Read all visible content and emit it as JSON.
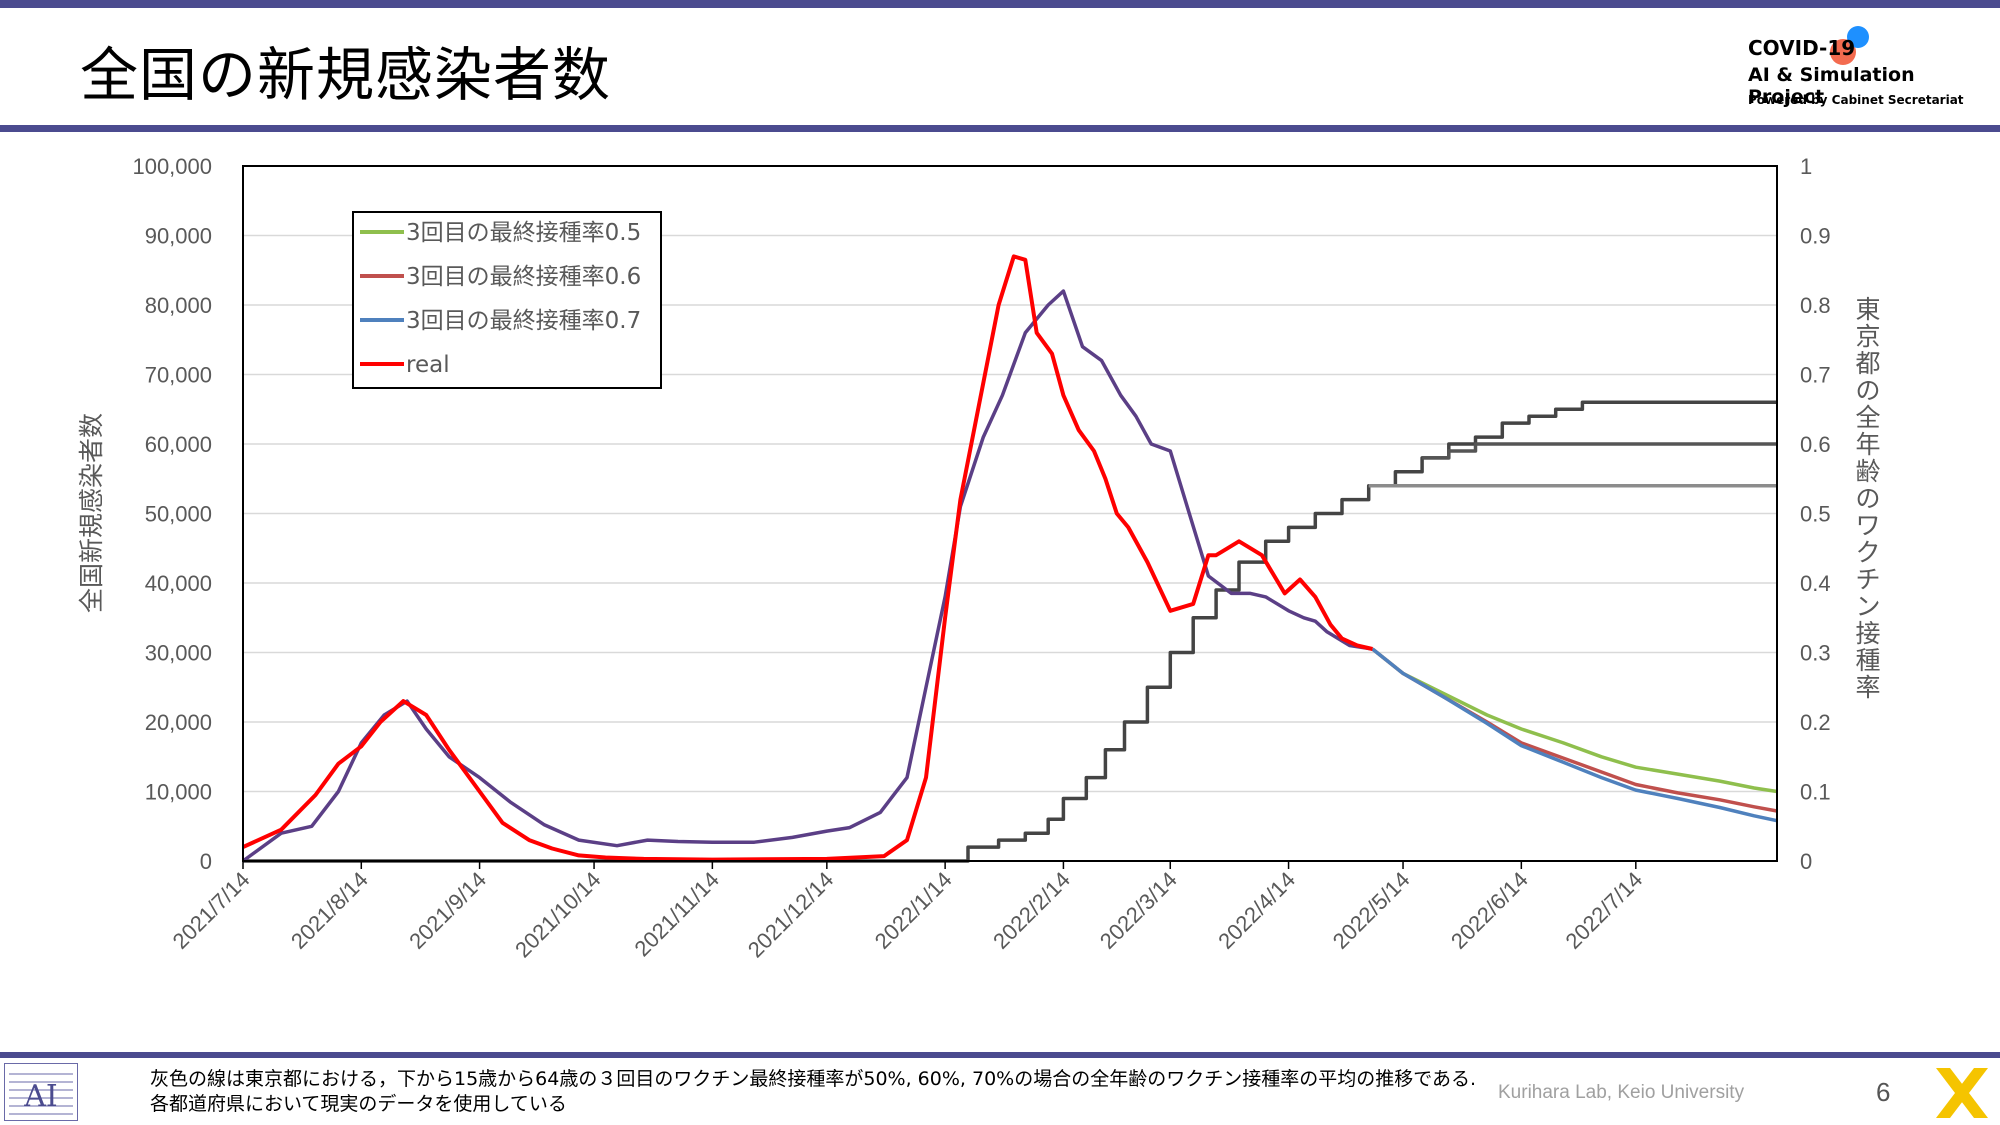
{
  "slide": {
    "title": "全国の新規感染者数",
    "logo": {
      "line1": "COVID-19",
      "line2": "AI & Simulation Project",
      "line3": "Powered by Cabinet Secretariat"
    },
    "footnote_line1": "灰色の線は東京都における，下から15歳から64歳の３回目のワクチン最終接種率が50%, 60%, 70%の場合の全年齢のワクチン接種率の平均の推移である.",
    "footnote_line2": "各都道府県において現実のデータを使用している",
    "credit": "Kurihara Lab, Keio University",
    "page_number": "6",
    "colors": {
      "header_bar": "#4b4b8f",
      "accent_yellow": "#f5c400"
    }
  },
  "chart_data": {
    "type": "line",
    "xlabel": "",
    "ylabel": "全国新規感染者数",
    "y2label": "東京都の全年齢のワクチン接種率",
    "ylim": [
      0,
      100000
    ],
    "y2lim": [
      0,
      1
    ],
    "yticks": [
      "0",
      "10,000",
      "20,000",
      "30,000",
      "40,000",
      "50,000",
      "60,000",
      "70,000",
      "80,000",
      "90,000",
      "100,000"
    ],
    "y2ticks": [
      "0",
      "0.1",
      "0.2",
      "0.3",
      "0.4",
      "0.5",
      "0.6",
      "0.7",
      "0.8",
      "0.9",
      "1"
    ],
    "xlim": [
      "2021-07-14",
      "2022-08-20"
    ],
    "xticks": [
      "2021/7/14",
      "2021/8/14",
      "2021/9/14",
      "2021/10/14",
      "2021/11/14",
      "2021/12/14",
      "2022/1/14",
      "2022/2/14",
      "2022/3/14",
      "2022/4/14",
      "2022/5/14",
      "2022/6/14",
      "2022/7/14"
    ],
    "grid": "horizontal",
    "legend_position": "top-left",
    "legend": [
      {
        "label": "3回目の最終接種率0.5",
        "color": "#8fbf4d"
      },
      {
        "label": "3回目の最終接種率0.6",
        "color": "#c0504d"
      },
      {
        "label": "3回目の最終接種率0.7",
        "color": "#4f81bd"
      },
      {
        "label": "real",
        "color": "#ff0000"
      }
    ],
    "series": [
      {
        "name": "fitted (overlap of 0.5 / 0.6 / 0.7)",
        "axis": "left",
        "color": "#5b3f86",
        "x": [
          "2021-07-14",
          "2021-07-24",
          "2021-08-01",
          "2021-08-08",
          "2021-08-14",
          "2021-08-20",
          "2021-08-26",
          "2021-08-31",
          "2021-09-06",
          "2021-09-14",
          "2021-09-22",
          "2021-10-01",
          "2021-10-10",
          "2021-10-20",
          "2021-10-28",
          "2021-11-05",
          "2021-11-14",
          "2021-11-25",
          "2021-12-05",
          "2021-12-14",
          "2021-12-20",
          "2021-12-28",
          "2022-01-04",
          "2022-01-09",
          "2022-01-14",
          "2022-01-18",
          "2022-01-24",
          "2022-01-29",
          "2022-02-04",
          "2022-02-10",
          "2022-02-14",
          "2022-02-19",
          "2022-02-24",
          "2022-03-01",
          "2022-03-05",
          "2022-03-09",
          "2022-03-14",
          "2022-03-19",
          "2022-03-24",
          "2022-03-30",
          "2022-04-04",
          "2022-04-08",
          "2022-04-14",
          "2022-04-18",
          "2022-04-21",
          "2022-04-24",
          "2022-04-30",
          "2022-05-06"
        ],
        "y": [
          0,
          4000,
          5000,
          10000,
          17000,
          21000,
          23000,
          19000,
          15000,
          12000,
          8500,
          5200,
          3000,
          2200,
          3000,
          2800,
          2700,
          2700,
          3400,
          4300,
          4800,
          7000,
          12000,
          25000,
          38000,
          51000,
          61000,
          67000,
          76000,
          80000,
          82000,
          74000,
          72000,
          67000,
          64000,
          60000,
          59000,
          50000,
          41000,
          38500,
          38500,
          38000,
          36000,
          35000,
          34500,
          33000,
          31000,
          30500
        ]
      },
      {
        "name": "3回目の最終接種率0.5",
        "axis": "left",
        "color": "#8fbf4d",
        "x": [
          "2022-05-06",
          "2022-05-14",
          "2022-05-25",
          "2022-06-05",
          "2022-06-14",
          "2022-06-25",
          "2022-07-05",
          "2022-07-14",
          "2022-07-25",
          "2022-08-05",
          "2022-08-14",
          "2022-08-20"
        ],
        "y": [
          30500,
          27000,
          24000,
          21000,
          19000,
          17000,
          15000,
          13500,
          12500,
          11500,
          10500,
          10000
        ]
      },
      {
        "name": "3回目の最終接種率0.6",
        "axis": "left",
        "color": "#c0504d",
        "x": [
          "2022-05-06",
          "2022-05-14",
          "2022-05-25",
          "2022-06-05",
          "2022-06-14",
          "2022-06-25",
          "2022-07-05",
          "2022-07-14",
          "2022-07-25",
          "2022-08-05",
          "2022-08-14",
          "2022-08-20"
        ],
        "y": [
          30500,
          27000,
          23500,
          20000,
          17000,
          14800,
          12800,
          11000,
          9800,
          8800,
          7800,
          7200
        ]
      },
      {
        "name": "3回目の最終接種率0.7",
        "axis": "left",
        "color": "#4f81bd",
        "x": [
          "2022-05-06",
          "2022-05-14",
          "2022-05-25",
          "2022-06-05",
          "2022-06-14",
          "2022-06-25",
          "2022-07-05",
          "2022-07-14",
          "2022-07-25",
          "2022-08-05",
          "2022-08-14",
          "2022-08-20"
        ],
        "y": [
          30500,
          27000,
          23500,
          19800,
          16600,
          14200,
          12000,
          10200,
          9000,
          7700,
          6500,
          5800
        ]
      },
      {
        "name": "real",
        "axis": "left",
        "color": "#ff0000",
        "x": [
          "2021-07-14",
          "2021-07-24",
          "2021-08-02",
          "2021-08-08",
          "2021-08-14",
          "2021-08-19",
          "2021-08-25",
          "2021-08-31",
          "2021-09-06",
          "2021-09-14",
          "2021-09-20",
          "2021-09-27",
          "2021-10-03",
          "2021-10-10",
          "2021-10-17",
          "2021-10-27",
          "2021-11-14",
          "2021-12-14",
          "2021-12-29",
          "2022-01-04",
          "2022-01-09",
          "2022-01-14",
          "2022-01-18",
          "2022-01-23",
          "2022-01-28",
          "2022-02-01",
          "2022-02-04",
          "2022-02-07",
          "2022-02-11",
          "2022-02-14",
          "2022-02-18",
          "2022-02-22",
          "2022-02-25",
          "2022-02-28",
          "2022-03-03",
          "2022-03-08",
          "2022-03-14",
          "2022-03-20",
          "2022-03-24",
          "2022-03-26",
          "2022-03-29",
          "2022-04-01",
          "2022-04-07",
          "2022-04-13",
          "2022-04-17",
          "2022-04-21",
          "2022-04-25",
          "2022-04-28",
          "2022-05-02",
          "2022-05-06"
        ],
        "y": [
          2000,
          4500,
          9500,
          14000,
          16500,
          20000,
          23000,
          21000,
          16000,
          10000,
          5500,
          3000,
          1800,
          800,
          500,
          300,
          200,
          300,
          700,
          3000,
          12000,
          35000,
          52000,
          66000,
          80000,
          87000,
          86500,
          76000,
          73000,
          67000,
          62000,
          59000,
          55000,
          50000,
          48000,
          43000,
          36000,
          37000,
          44000,
          44000,
          45000,
          46000,
          44000,
          38500,
          40500,
          38000,
          34000,
          32000,
          31000,
          30500
        ]
      },
      {
        "name": "接種率 (70%)",
        "axis": "right",
        "color": "#444444",
        "x": [
          "2021-07-14",
          "2022-01-14",
          "2022-01-20",
          "2022-01-28",
          "2022-02-04",
          "2022-02-10",
          "2022-02-14",
          "2022-02-20",
          "2022-02-25",
          "2022-03-02",
          "2022-03-08",
          "2022-03-14",
          "2022-03-20",
          "2022-03-26",
          "2022-04-01",
          "2022-04-08",
          "2022-04-14",
          "2022-04-21",
          "2022-04-28",
          "2022-05-05",
          "2022-05-12",
          "2022-05-19",
          "2022-05-26",
          "2022-06-02",
          "2022-06-09",
          "2022-06-16",
          "2022-06-23",
          "2022-06-30",
          "2022-08-20"
        ],
        "y": [
          0,
          0,
          0.02,
          0.03,
          0.04,
          0.06,
          0.09,
          0.12,
          0.16,
          0.2,
          0.25,
          0.3,
          0.35,
          0.39,
          0.43,
          0.46,
          0.48,
          0.5,
          0.52,
          0.54,
          0.56,
          0.58,
          0.6,
          0.61,
          0.63,
          0.64,
          0.65,
          0.66,
          0.66
        ]
      },
      {
        "name": "接種率 (60%)",
        "axis": "right",
        "color": "#555555",
        "x": [
          "2022-05-19",
          "2022-05-26",
          "2022-06-02",
          "2022-08-20"
        ],
        "y": [
          0.58,
          0.59,
          0.6,
          0.6
        ]
      },
      {
        "name": "接種率 (50%)",
        "axis": "right",
        "color": "#8c8c8c",
        "x": [
          "2022-05-05",
          "2022-05-12",
          "2022-08-20"
        ],
        "y": [
          0.54,
          0.54,
          0.54
        ]
      }
    ]
  }
}
